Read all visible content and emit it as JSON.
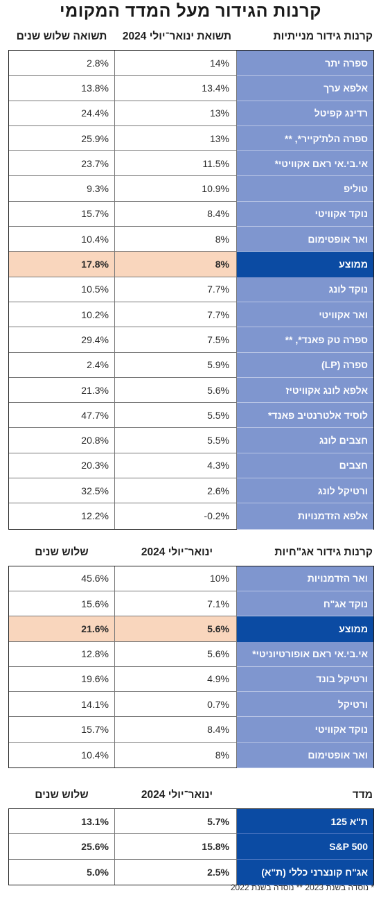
{
  "title": "קרנות הגידור מעל המדד המקומי",
  "equity": {
    "head_name": "קרנות גידור מנייתיות",
    "head_c1": "תשואת ינואר־יולי 2024",
    "head_c2": "תשואה שלוש שנים",
    "rows": [
      {
        "name": "ספרה יתר",
        "c1": "14%",
        "c2": "2.8%"
      },
      {
        "name": "אלפא ערך",
        "c1": "13.4%",
        "c2": "13.8%"
      },
      {
        "name": "רדינג קפיטל",
        "c1": "13%",
        "c2": "24.4%"
      },
      {
        "name": "ספרה הלת'קייר*, **",
        "c1": "13%",
        "c2": "25.9%"
      },
      {
        "name": "אי.בי.אי ראם אקוויטי*",
        "c1": "11.5%",
        "c2": "23.7%"
      },
      {
        "name": "טוליפ",
        "c1": "10.9%",
        "c2": "9.3%"
      },
      {
        "name": "נוקד אקוויטי",
        "c1": "8.4%",
        "c2": "15.7%"
      },
      {
        "name": "ואר אופטימום",
        "c1": "8%",
        "c2": "10.4%"
      },
      {
        "name": "ממוצע",
        "c1": "8%",
        "c2": "17.8%"
      },
      {
        "name": "נוקד לונג",
        "c1": "7.7%",
        "c2": "10.5%"
      },
      {
        "name": "ואר אקוויטי",
        "c1": "7.7%",
        "c2": "10.2%"
      },
      {
        "name": "ספרה טק פאנד*, **",
        "c1": "7.5%",
        "c2": "29.4%"
      },
      {
        "name": "ספרה (LP)",
        "c1": "5.9%",
        "c2": "2.4%"
      },
      {
        "name": "אלפא לונג אקוויטיז",
        "c1": "5.6%",
        "c2": "21.3%"
      },
      {
        "name": "לוסיד אלטרנטיב פאנד*",
        "c1": "5.5%",
        "c2": "47.7%"
      },
      {
        "name": "חצבים לונג",
        "c1": "5.5%",
        "c2": "20.8%"
      },
      {
        "name": "חצבים",
        "c1": "4.3%",
        "c2": "20.3%"
      },
      {
        "name": "ורטיקל לונג",
        "c1": "2.6%",
        "c2": "32.5%"
      },
      {
        "name": "אלפא הזדמנויות",
        "c1": "-0.2%",
        "c2": "12.2%"
      }
    ]
  },
  "bonds": {
    "head_name": "קרנות גידור אג\"חיות",
    "head_c1": "ינואר־יולי 2024",
    "head_c2": "שלוש שנים",
    "rows": [
      {
        "name": "ואר הזדמנויות",
        "c1": "10%",
        "c2": "45.6%"
      },
      {
        "name": "נוקד אג\"ח",
        "c1": "7.1%",
        "c2": "15.6%"
      },
      {
        "name": "ממוצע",
        "c1": "5.6%",
        "c2": "21.6%"
      },
      {
        "name": "אי.בי.אי ראם אופורטיוניטי*",
        "c1": "5.6%",
        "c2": "12.8%"
      },
      {
        "name": "ורטיקל בונד",
        "c1": "4.9%",
        "c2": "19.6%"
      },
      {
        "name": "ורטיקל",
        "c1": "0.7%",
        "c2": "14.1%"
      },
      {
        "name": "נוקד אקוויטי",
        "c1": "8.4%",
        "c2": "15.7%"
      },
      {
        "name": "ואר אופטימום",
        "c1": "8%",
        "c2": "10.4%"
      }
    ]
  },
  "index": {
    "head_name": "מדד",
    "head_c1": "ינואר־יולי 2024",
    "head_c2": "שלוש שנים",
    "rows": [
      {
        "name": "ת\"א 125",
        "c1": "5.7%",
        "c2": "13.1%"
      },
      {
        "name": "S&P 500",
        "c1": "15.8%",
        "c2": "25.6%"
      },
      {
        "name": "אג\"ח קונצרני כללי (ת\"א)",
        "c1": "2.5%",
        "c2": "5.0%"
      }
    ]
  },
  "footnote": "* נוסדה בשנת 2023 ** נוסדה בשנת 2022",
  "colors": {
    "name_bg": "#7f96cf",
    "avg_name_bg": "#0b4ba3",
    "avg_value_bg": "#f9d6bd"
  }
}
